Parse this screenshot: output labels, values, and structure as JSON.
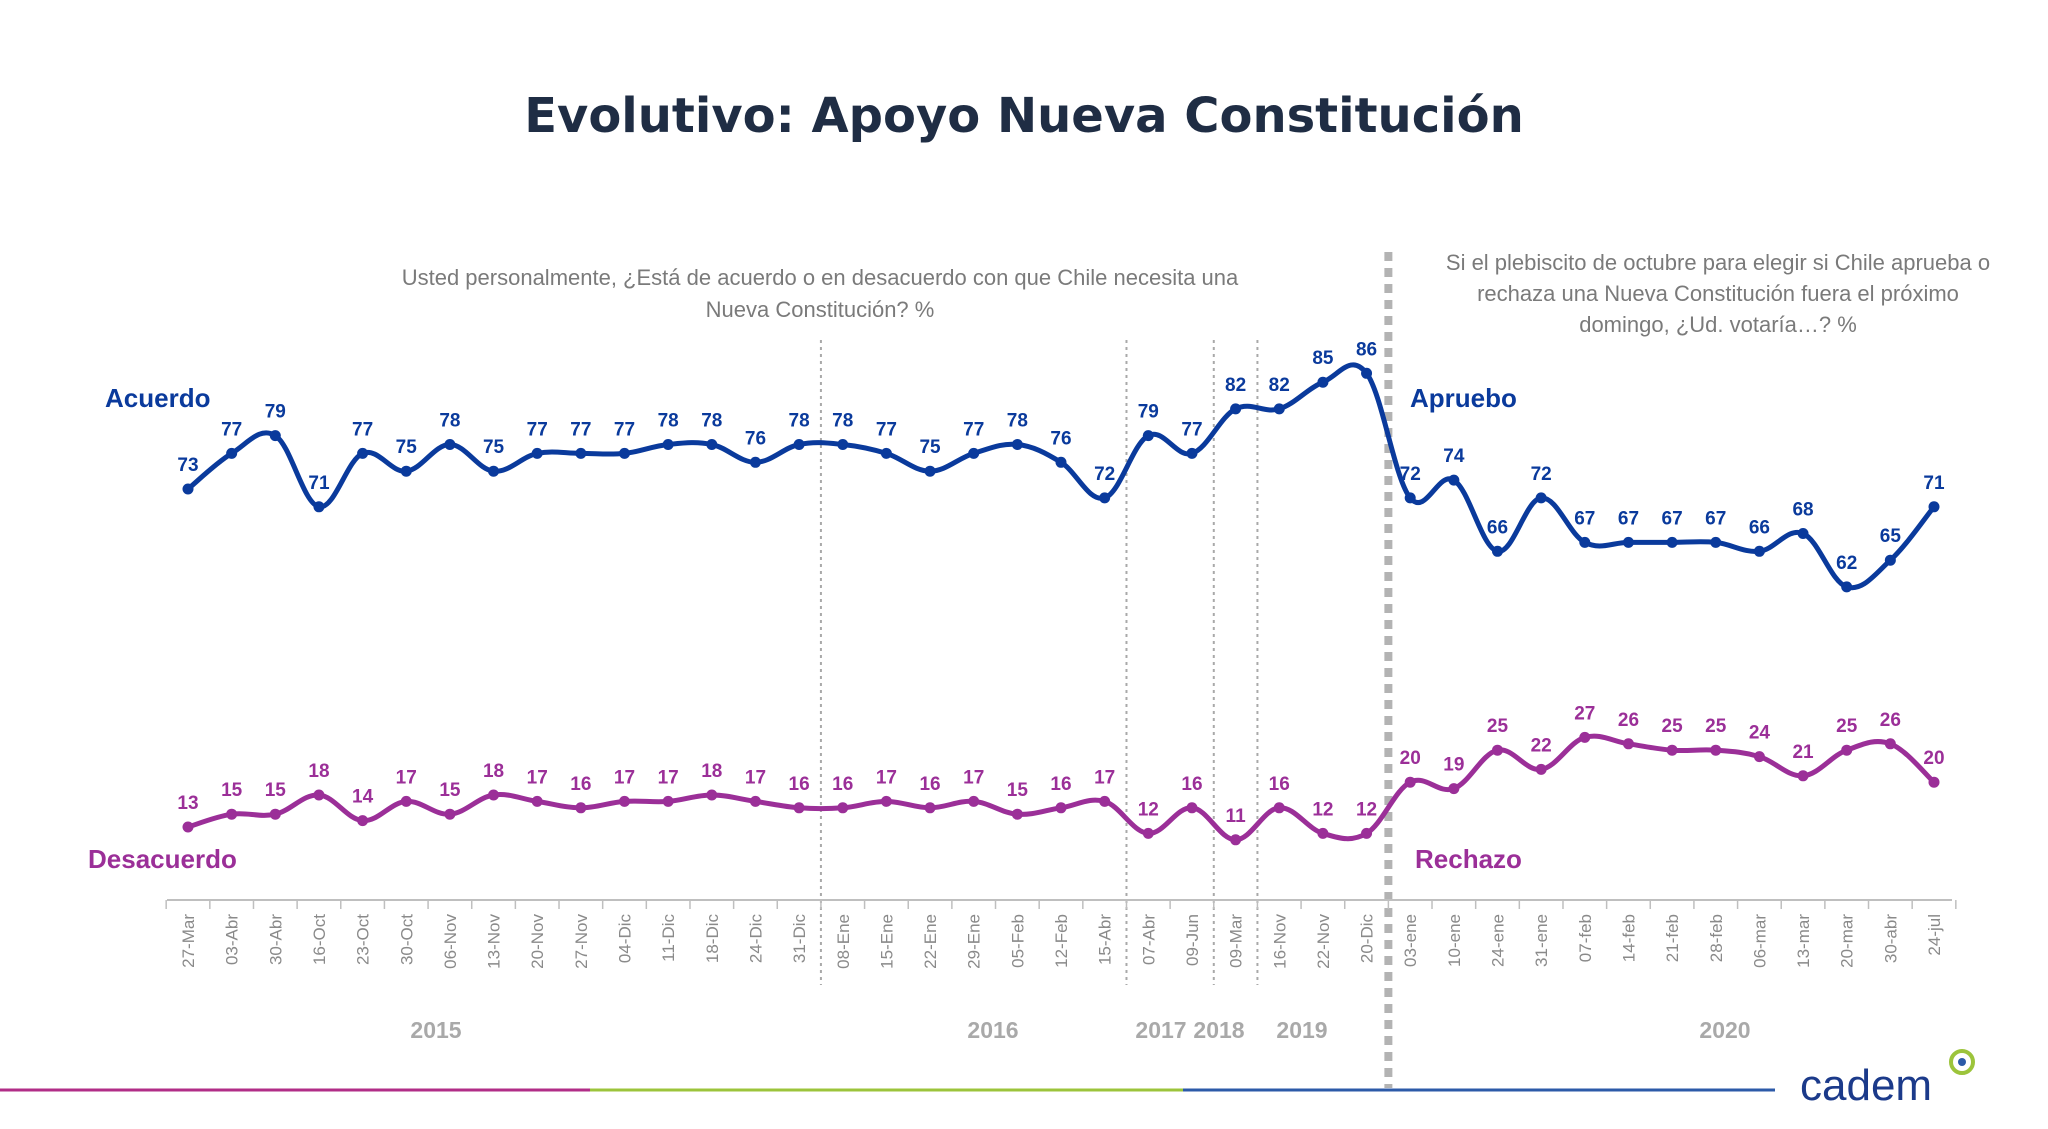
{
  "title": "Evolutivo: Apoyo Nueva Constitución",
  "question_left": [
    "Usted personalmente, ¿Está de acuerdo o en desacuerdo con que Chile necesita una",
    "Nueva Constitución? %"
  ],
  "question_right": [
    "Si el plebiscito de octubre para elegir si Chile aprueba o",
    "rechaza una Nueva Constitución fuera el próximo",
    "domingo, ¿Ud. votaría…? %"
  ],
  "labels": {
    "acuerdo": "Acuerdo",
    "desacuerdo": "Desacuerdo",
    "apruebo": "Apruebo",
    "rechazo": "Rechazo"
  },
  "logo": "cadem",
  "colors": {
    "blue": "#0a3a9c",
    "purple": "#9b2f98",
    "footer_pink": "#b12d87",
    "footer_green": "#9cc43b",
    "footer_blue": "#2c5aa8"
  },
  "chart_data": {
    "type": "line",
    "categories": [
      "27-Mar",
      "03-Abr",
      "30-Abr",
      "16-Oct",
      "23-Oct",
      "30-Oct",
      "06-Nov",
      "13-Nov",
      "20-Nov",
      "27-Nov",
      "04-Dic",
      "11-Dic",
      "18-Dic",
      "24-Dic",
      "31-Dic",
      "08-Ene",
      "15-Ene",
      "22-Ene",
      "29-Ene",
      "05-Feb",
      "12-Feb",
      "15-Abr",
      "07-Abr",
      "09-Jun",
      "09-Mar",
      "16-Nov",
      "22-Nov",
      "20-Dic",
      "03-ene",
      "10-ene",
      "24-ene",
      "31-ene",
      "07-feb",
      "14-feb",
      "21-feb",
      "28-feb",
      "06-mar",
      "13-mar",
      "20-mar",
      "30-abr",
      "24-jul"
    ],
    "series": [
      {
        "name": "Acuerdo / Apruebo",
        "values": [
          73,
          77,
          79,
          71,
          77,
          75,
          78,
          75,
          77,
          77,
          77,
          78,
          78,
          76,
          78,
          78,
          77,
          75,
          77,
          78,
          76,
          72,
          79,
          77,
          82,
          82,
          85,
          86,
          72,
          74,
          66,
          72,
          67,
          67,
          67,
          67,
          66,
          68,
          62,
          65,
          71
        ]
      },
      {
        "name": "Desacuerdo / Rechazo",
        "values": [
          13,
          15,
          15,
          18,
          14,
          17,
          15,
          18,
          17,
          16,
          17,
          17,
          18,
          17,
          16,
          16,
          17,
          16,
          17,
          15,
          16,
          17,
          12,
          16,
          11,
          16,
          12,
          12,
          20,
          19,
          25,
          22,
          27,
          26,
          25,
          25,
          24,
          21,
          25,
          26,
          20
        ]
      }
    ],
    "years": [
      {
        "label": "2015",
        "start": 0,
        "end": 14
      },
      {
        "label": "2016",
        "start": 15,
        "end": 21
      },
      {
        "label": "2017",
        "start": 22,
        "end": 23
      },
      {
        "label": "2018",
        "start": 24,
        "end": 24
      },
      {
        "label": "2019",
        "start": 25,
        "end": 27
      },
      {
        "label": "2020",
        "start": 28,
        "end": 40
      }
    ],
    "dotted_separators_after": [
      14,
      21,
      23,
      24
    ],
    "thick_separator_after": 27
  }
}
